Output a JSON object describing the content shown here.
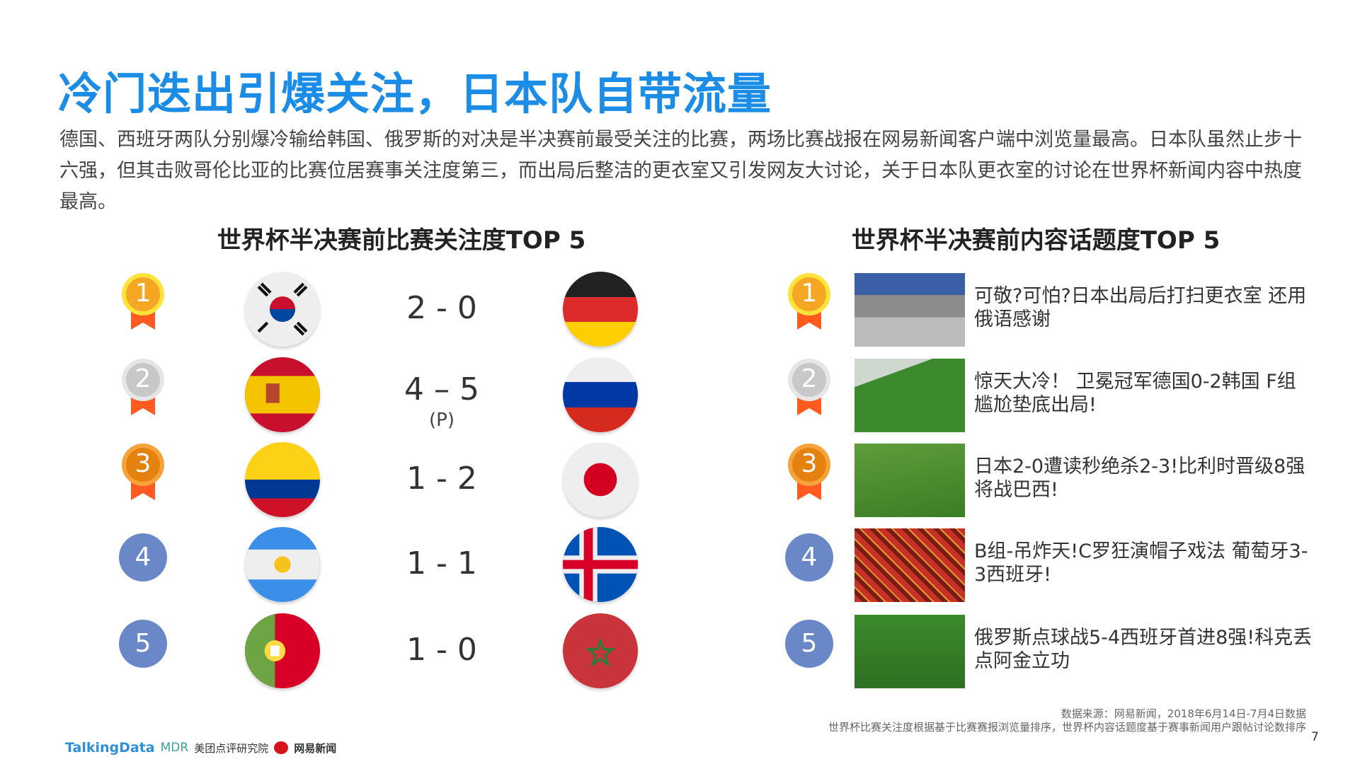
{
  "title": "冷门迭出引爆关注，日本队自带流量",
  "paragraph": "德国、西班牙两队分别爆冷输给韩国、俄罗斯的对决是半决赛前最受关注的比赛，两场比赛战报在网易新闻客户端中浏览量最高。日本队虽然止步十六强，但其击败哥伦比亚的比赛位居赛事关注度第三，而出局后整洁的更衣室又引发网友大讨论，关于日本队更衣室的讨论在世界杯新闻内容中热度最高。",
  "left": {
    "heading": "世界杯半决赛前比赛关注度TOP 5",
    "rows": [
      {
        "rank": "1",
        "team1": "korea",
        "score": "2 - 0",
        "note": "",
        "team2": "germany"
      },
      {
        "rank": "2",
        "team1": "spain",
        "score": "4 – 5",
        "note": "(P)",
        "team2": "russia"
      },
      {
        "rank": "3",
        "team1": "colombia",
        "score": "1 - 2",
        "note": "",
        "team2": "japan"
      },
      {
        "rank": "4",
        "team1": "argentina",
        "score": "1 - 1",
        "note": "",
        "team2": "iceland"
      },
      {
        "rank": "5",
        "team1": "portugal",
        "score": "1 - 0",
        "note": "",
        "team2": "morocco"
      }
    ]
  },
  "right": {
    "heading": "世界杯半决赛前内容话题度TOP 5",
    "rows": [
      {
        "rank": "1",
        "text": "可敬?可怕?日本出局后打扫更衣室 还用俄语感谢",
        "photo": "locker-room"
      },
      {
        "rank": "2",
        "text": "惊天大冷！ 卫冕冠军德国0-2韩国 F组尴尬垫底出局!",
        "photo": "goal-scene"
      },
      {
        "rank": "3",
        "text": "日本2-0遭读秒绝杀2-3!比利时晋级8强将战巴西!",
        "photo": "pitch-fall"
      },
      {
        "rank": "4",
        "text": "B组-吊炸天!C罗狂演帽子戏法 葡萄牙3-3西班牙!",
        "photo": "crowd"
      },
      {
        "rank": "5",
        "text": "俄罗斯点球战5-4西班牙首进8强!科克丢点阿金立功",
        "photo": "celebration"
      }
    ]
  },
  "medal_colors": {
    "1": "#f5a623",
    "2": "#c8c8c8",
    "3": "#e5820f",
    "other": "#6a88c8",
    "ribbon": "#ff5a1f"
  },
  "footer": {
    "source": "数据来源：网易新闻，2018年6月14日-7月4日数据",
    "note": "世界杯比赛关注度根据基于比赛赛报浏览量排序，世界杯内容话题度基于赛事新闻用户跟帖讨论数排序",
    "page": "7"
  },
  "logos": {
    "talkingdata": "TalkingData",
    "mdr": "MDR",
    "meituan": "美团点评研究院",
    "netease": "网易新闻"
  }
}
